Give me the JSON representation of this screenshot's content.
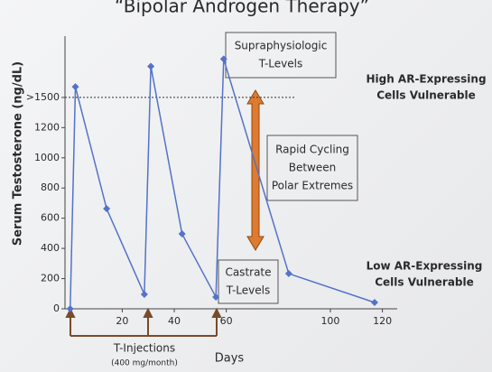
{
  "chart_data": {
    "type": "line",
    "title": "“Bipolar Androgen Therapy”",
    "y_label": "Serum Testosterone (ng/dL)",
    "x_label": "Days",
    "annotations": {
      "supra": [
        "Supraphysiologic",
        "T-Levels"
      ],
      "high": [
        "High AR-Expressing",
        "Cells Vulnerable"
      ],
      "rapid": [
        "Rapid Cycling",
        "Between",
        "Polar Extremes"
      ],
      "castrate": [
        "Castrate",
        "T-Levels"
      ],
      "low": [
        "Low AR-Expressing",
        "Cells Vulnerable"
      ],
      "injections": "T-Injections",
      "dose": "(400 mg/month)"
    },
    "series": [
      {
        "name": "Serum Testosterone",
        "color": "#5472c8",
        "x": [
          0,
          2,
          14,
          28.5,
          31,
          43,
          56,
          59,
          84,
          117
        ],
        "values": [
          0,
          1470,
          663,
          96,
          1606,
          496,
          78,
          1654,
          233,
          42
        ]
      }
    ],
    "xlim": [
      -2,
      125
    ],
    "ylim": [
      0,
      1800
    ],
    "xticks": [
      20,
      40,
      60,
      100,
      120
    ],
    "yticks": [
      0,
      200,
      400,
      600,
      800,
      1000,
      1200,
      {
        "value": 1400,
        "label": ">1500"
      }
    ]
  }
}
